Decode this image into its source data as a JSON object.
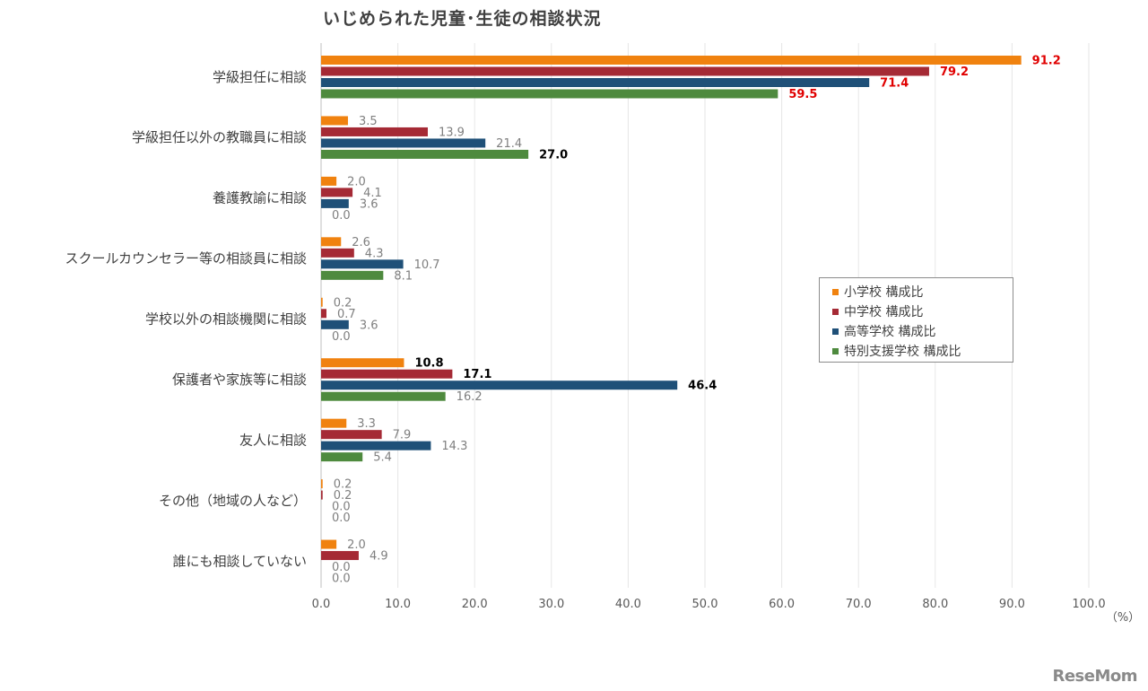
{
  "chart_data": {
    "type": "bar",
    "orientation": "horizontal",
    "title": "いじめられた児童･生徒の相談状況",
    "categories": [
      "学級担任に相談",
      "学級担任以外の教職員に相談",
      "養護教諭に相談",
      "スクールカウンセラー等の相談員に相談",
      "学校以外の相談機関に相談",
      "保護者や家族等に相談",
      "友人に相談",
      "その他（地域の人など）",
      "誰にも相談していない"
    ],
    "series": [
      {
        "name": "小学校 構成比",
        "color": "#f0820f",
        "values": [
          91.2,
          3.5,
          2.0,
          2.6,
          0.2,
          10.8,
          3.3,
          0.2,
          2.0
        ]
      },
      {
        "name": "中学校 構成比",
        "color": "#a52a35",
        "values": [
          79.2,
          13.9,
          4.1,
          4.3,
          0.7,
          17.1,
          7.9,
          0.2,
          4.9
        ]
      },
      {
        "name": "高等学校 構成比",
        "color": "#1f5078",
        "values": [
          71.4,
          21.4,
          3.6,
          10.7,
          3.6,
          46.4,
          14.3,
          0.0,
          0.0
        ]
      },
      {
        "name": "特別支援学校 構成比",
        "color": "#4e8a3e",
        "values": [
          59.5,
          27.0,
          0.0,
          8.1,
          0.0,
          16.2,
          5.4,
          0.0,
          0.0
        ]
      }
    ],
    "value_labels": [
      [
        "91.2",
        "79.2",
        "71.4",
        "59.5"
      ],
      [
        "3.5",
        "13.9",
        "21.4",
        "27.0"
      ],
      [
        "2.0",
        "4.1",
        "3.6",
        "0.0"
      ],
      [
        "2.6",
        "4.3",
        "10.7",
        "8.1"
      ],
      [
        "0.2",
        "0.7",
        "3.6",
        "0.0"
      ],
      [
        "10.8",
        "17.1",
        "46.4",
        "16.2"
      ],
      [
        "3.3",
        "7.9",
        "14.3",
        "5.4"
      ],
      [
        "0.2",
        "0.2",
        "0.0",
        "0.0"
      ],
      [
        "2.0",
        "4.9",
        "0.0",
        "0.0"
      ]
    ],
    "label_styles": [
      [
        "red",
        "red",
        "red",
        "red"
      ],
      [
        "gray",
        "gray",
        "gray",
        "black"
      ],
      [
        "gray",
        "gray",
        "gray",
        "gray"
      ],
      [
        "gray",
        "gray",
        "gray",
        "gray"
      ],
      [
        "gray",
        "gray",
        "gray",
        "gray"
      ],
      [
        "black",
        "black",
        "black",
        "gray"
      ],
      [
        "gray",
        "gray",
        "gray",
        "gray"
      ],
      [
        "gray",
        "gray",
        "gray",
        "gray"
      ],
      [
        "gray",
        "gray",
        "gray",
        "gray"
      ]
    ],
    "label_colors": {
      "red": "#e00000",
      "black": "#000000",
      "gray": "#7f7f7f"
    },
    "xlim": [
      0,
      100
    ],
    "xticks": [
      "0.0",
      "10.0",
      "20.0",
      "30.0",
      "40.0",
      "50.0",
      "60.0",
      "70.0",
      "80.0",
      "90.0",
      "100.0"
    ],
    "xunit": "（%）",
    "grid": true,
    "legend_position": "right-center"
  },
  "watermark": "ReseMom"
}
